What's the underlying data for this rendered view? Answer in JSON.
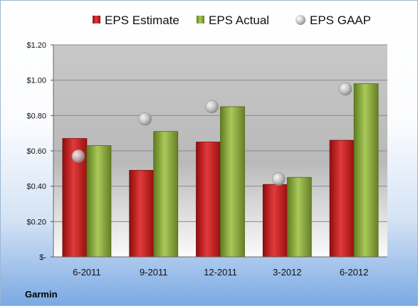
{
  "chart_data": {
    "type": "bar",
    "categories": [
      "6-2011",
      "9-2011",
      "12-2011",
      "3-2012",
      "6-2012"
    ],
    "series": [
      {
        "name": "EPS Estimate",
        "values": [
          0.67,
          0.49,
          0.65,
          0.41,
          0.66
        ],
        "color": "#cc1f1f"
      },
      {
        "name": "EPS Actual",
        "values": [
          0.63,
          0.71,
          0.85,
          0.45,
          0.98
        ],
        "color": "#8fb23a"
      }
    ],
    "markers": {
      "name": "EPS GAAP",
      "values": [
        0.57,
        0.78,
        0.85,
        0.44,
        0.95
      ],
      "color": "#b4b4b4"
    },
    "y_ticks": [
      "$-",
      "$0.20",
      "$0.40",
      "$0.60",
      "$0.80",
      "$1.00",
      "$1.20"
    ],
    "ylim": [
      0,
      1.2
    ],
    "grid": true,
    "legend_position": "top"
  },
  "footer": {
    "company": "Garmin"
  }
}
